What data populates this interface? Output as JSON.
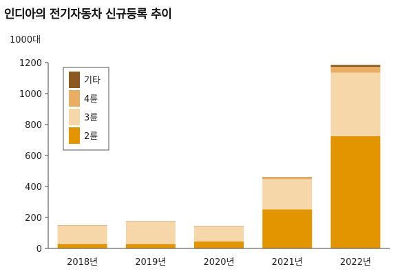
{
  "title": "인디아의 전기자동차 신규등록 추이",
  "unit_label": "1000대",
  "colors": {
    "2륜": "#e39500",
    "3륜": "#f6d7aa",
    "4륜": "#eaae62",
    "기타": "#8c5a20",
    "axis": "#444444",
    "plot_background": "#ffffff"
  },
  "chart_data": {
    "type": "bar",
    "stacked": true,
    "categories": [
      "2018년",
      "2019년",
      "2020년",
      "2021년",
      "2022년"
    ],
    "series": [
      {
        "name": "2륜",
        "values": [
          28,
          28,
          45,
          252,
          725
        ]
      },
      {
        "name": "3륜",
        "values": [
          120,
          145,
          95,
          195,
          410
        ]
      },
      {
        "name": "4륜",
        "values": [
          2,
          2,
          3,
          12,
          38
        ]
      },
      {
        "name": "기타",
        "values": [
          1,
          1,
          1,
          2,
          12
        ]
      }
    ],
    "legend_order": [
      "기타",
      "4륜",
      "3륜",
      "2륜"
    ],
    "legend_position": "top-left",
    "ylim": [
      0,
      1200
    ],
    "yticks": [
      0,
      200,
      400,
      600,
      800,
      1000,
      1200
    ],
    "grid": false
  }
}
